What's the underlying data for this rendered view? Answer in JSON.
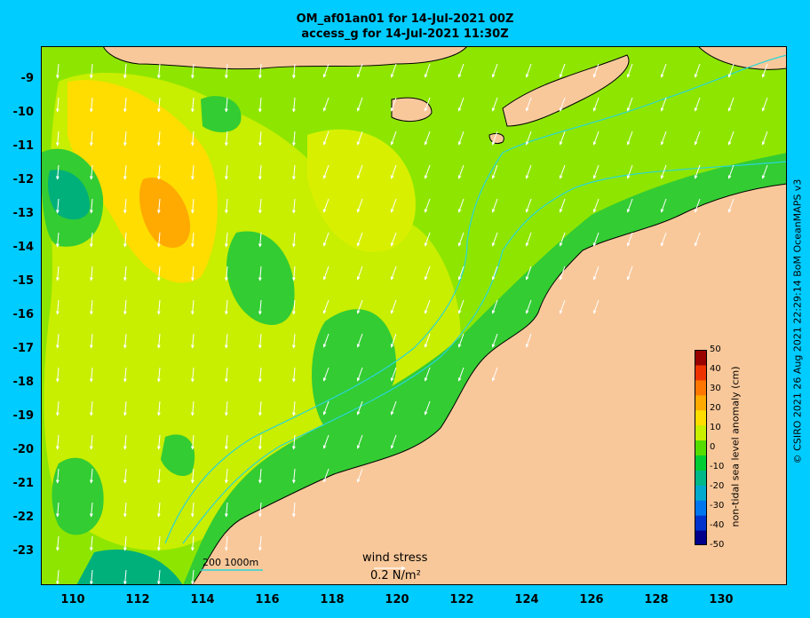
{
  "title": {
    "line1": "OM_af01an01 for 14-Jul-2021 00Z",
    "line2": "access_g for 14-Jul-2021 11:30Z"
  },
  "axes": {
    "lat_labels": [
      "-9",
      "-10",
      "-11",
      "-12",
      "-13",
      "-14",
      "-15",
      "-16",
      "-17",
      "-18",
      "-19",
      "-20",
      "-21",
      "-22",
      "-23"
    ],
    "lon_labels": [
      "110",
      "112",
      "114",
      "116",
      "118",
      "120",
      "122",
      "124",
      "126",
      "128",
      "130"
    ]
  },
  "colorbar": {
    "title": "non-tidal sea level anomaly (cm)",
    "ticks": [
      "50",
      "40",
      "30",
      "20",
      "10",
      "0",
      "-10",
      "-20",
      "-30",
      "-40",
      "-50"
    ],
    "colors": [
      "#00008b",
      "#0033cc",
      "#0077ee",
      "#00aacc",
      "#00b888",
      "#00cc33",
      "#55dd00",
      "#c8ee00",
      "#ffdd00",
      "#ffaa00",
      "#ff7700",
      "#ee3300",
      "#990000"
    ]
  },
  "legend": {
    "wind_stress_label": "wind stress",
    "wind_stress_value": "0.2 N/m²",
    "scale_label": "200  1000m"
  },
  "credit": "© CSIRO 2021   26 Aug 2021 22:29:14 BoM OceanMAPS v3",
  "colors": {
    "background": "#00ccff",
    "land": "#f9c89a",
    "ocean_base": "#8ee600",
    "high_anomaly": "#ffaa00",
    "low_anomaly": "#00b050",
    "isobath": "#2ad6d6",
    "arrows": "#ffffff"
  }
}
